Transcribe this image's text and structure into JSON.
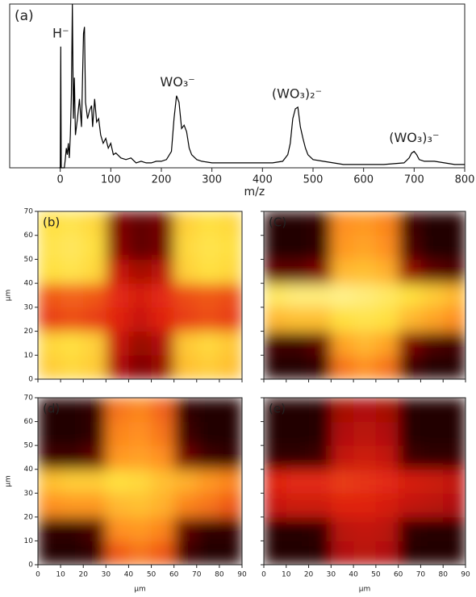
{
  "chart_data": [
    {
      "type": "line",
      "label": "(a)",
      "xlabel": "m/z",
      "color": "#000000",
      "xlim": [
        -100,
        800
      ],
      "xticks": [
        0,
        100,
        200,
        300,
        400,
        500,
        600,
        700,
        800
      ],
      "ylim": [
        0,
        100
      ],
      "x": [
        -2,
        0,
        1,
        2,
        8,
        10,
        12,
        14,
        16,
        18,
        20,
        22,
        24,
        26,
        28,
        30,
        34,
        38,
        42,
        46,
        48,
        50,
        54,
        58,
        62,
        64,
        68,
        72,
        76,
        80,
        85,
        90,
        95,
        100,
        105,
        110,
        120,
        130,
        140,
        150,
        160,
        170,
        180,
        190,
        200,
        210,
        220,
        225,
        230,
        235,
        240,
        245,
        250,
        255,
        260,
        270,
        280,
        300,
        320,
        340,
        360,
        380,
        400,
        420,
        440,
        450,
        455,
        460,
        465,
        470,
        475,
        480,
        485,
        490,
        500,
        520,
        540,
        560,
        600,
        640,
        680,
        690,
        695,
        700,
        705,
        710,
        720,
        740,
        760,
        780,
        800
      ],
      "values": [
        0,
        0,
        74,
        0,
        0,
        5,
        12,
        8,
        15,
        6,
        20,
        45,
        100,
        30,
        55,
        20,
        30,
        42,
        25,
        82,
        86,
        40,
        30,
        35,
        38,
        25,
        42,
        28,
        30,
        20,
        15,
        18,
        12,
        15,
        8,
        9,
        6,
        5,
        6,
        3,
        4,
        3,
        3,
        4,
        4,
        5,
        10,
        30,
        44,
        40,
        24,
        26,
        22,
        12,
        8,
        5,
        4,
        3,
        3,
        3,
        3,
        3,
        3,
        3,
        4,
        8,
        15,
        30,
        36,
        37,
        25,
        18,
        12,
        8,
        5,
        4,
        3,
        2,
        2,
        2,
        3,
        6,
        9,
        10,
        8,
        5,
        4,
        4,
        3,
        2,
        2
      ],
      "annotations": [
        {
          "text": "H⁻",
          "x": 1
        },
        {
          "text": "WO₃⁻",
          "x": 232
        },
        {
          "text": "(WO₃)₂⁻",
          "x": 468
        },
        {
          "text": "(WO₃)₃⁻",
          "x": 700
        }
      ]
    },
    {
      "type": "heatmap",
      "label": "(b)",
      "ylabel": "μm",
      "show_xtick_labels": false,
      "show_ytick_labels": true,
      "xlim": [
        0,
        90
      ],
      "ylim": [
        0,
        70
      ],
      "xticks": [
        0,
        10,
        20,
        30,
        40,
        50,
        60,
        70,
        80,
        90
      ],
      "yticks": [
        0,
        10,
        20,
        30,
        40,
        50,
        60,
        70
      ],
      "zlim": [
        0,
        100
      ],
      "colormap": [
        "#000000",
        "#800000",
        "#e02010",
        "#ff9020",
        "#ffe040",
        "#ffffd0"
      ],
      "x": [
        5,
        15,
        25,
        35,
        45,
        55,
        65,
        75,
        85
      ],
      "y": [
        5,
        15,
        25,
        35,
        45,
        55,
        65
      ],
      "values": [
        [
          75,
          78,
          75,
          30,
          20,
          25,
          72,
          75,
          72
        ],
        [
          78,
          80,
          76,
          35,
          25,
          30,
          74,
          78,
          74
        ],
        [
          45,
          48,
          45,
          40,
          35,
          40,
          45,
          48,
          45
        ],
        [
          50,
          52,
          50,
          42,
          38,
          42,
          48,
          50,
          48
        ],
        [
          80,
          82,
          78,
          35,
          28,
          32,
          76,
          80,
          78
        ],
        [
          82,
          84,
          80,
          22,
          15,
          18,
          78,
          82,
          80
        ],
        [
          80,
          82,
          78,
          20,
          15,
          18,
          76,
          80,
          78
        ]
      ]
    },
    {
      "type": "heatmap",
      "label": "(C)",
      "show_xtick_labels": false,
      "show_ytick_labels": false,
      "xlim": [
        0,
        90
      ],
      "ylim": [
        0,
        70
      ],
      "xticks": [
        0,
        10,
        20,
        30,
        40,
        50,
        60,
        70,
        80,
        90
      ],
      "yticks": [
        0,
        10,
        20,
        30,
        40,
        50,
        60,
        70
      ],
      "zlim": [
        0,
        100
      ],
      "colormap": [
        "#000000",
        "#800000",
        "#e02010",
        "#ff9020",
        "#ffe040",
        "#ffffd0"
      ],
      "x": [
        5,
        15,
        25,
        35,
        45,
        55,
        65,
        75,
        85
      ],
      "y": [
        5,
        15,
        25,
        35,
        45,
        55,
        65
      ],
      "values": [
        [
          5,
          5,
          8,
          55,
          60,
          55,
          10,
          5,
          5
        ],
        [
          10,
          10,
          15,
          65,
          70,
          65,
          20,
          12,
          10
        ],
        [
          70,
          72,
          72,
          80,
          82,
          80,
          70,
          65,
          60
        ],
        [
          85,
          88,
          88,
          90,
          88,
          85,
          80,
          75,
          70
        ],
        [
          15,
          15,
          20,
          70,
          72,
          68,
          25,
          15,
          12
        ],
        [
          5,
          5,
          8,
          62,
          65,
          60,
          12,
          5,
          5
        ],
        [
          5,
          5,
          8,
          60,
          62,
          58,
          10,
          5,
          5
        ]
      ]
    },
    {
      "type": "heatmap",
      "label": "(d)",
      "xlabel": "μm",
      "ylabel": "μm",
      "show_xtick_labels": true,
      "show_ytick_labels": true,
      "xlim": [
        0,
        90
      ],
      "ylim": [
        0,
        70
      ],
      "xticks": [
        0,
        10,
        20,
        30,
        40,
        50,
        60,
        70,
        80,
        90
      ],
      "yticks": [
        0,
        10,
        20,
        30,
        40,
        50,
        60,
        70
      ],
      "zlim": [
        0,
        100
      ],
      "colormap": [
        "#000000",
        "#800000",
        "#e02010",
        "#ff9020",
        "#ffe040",
        "#ffffd0"
      ],
      "x": [
        5,
        15,
        25,
        35,
        45,
        55,
        65,
        75,
        85
      ],
      "y": [
        5,
        15,
        25,
        35,
        45,
        55,
        65
      ],
      "values": [
        [
          5,
          5,
          8,
          50,
          55,
          50,
          10,
          5,
          5
        ],
        [
          8,
          8,
          12,
          60,
          62,
          58,
          15,
          8,
          8
        ],
        [
          60,
          62,
          62,
          70,
          72,
          68,
          58,
          55,
          50
        ],
        [
          72,
          75,
          75,
          80,
          78,
          72,
          68,
          62,
          58
        ],
        [
          10,
          10,
          15,
          62,
          64,
          60,
          18,
          10,
          8
        ],
        [
          5,
          5,
          8,
          58,
          60,
          55,
          10,
          5,
          5
        ],
        [
          5,
          5,
          8,
          55,
          58,
          52,
          8,
          5,
          5
        ]
      ]
    },
    {
      "type": "heatmap",
      "label": "(e)",
      "xlabel": "μm",
      "show_xtick_labels": true,
      "show_ytick_labels": false,
      "xlim": [
        0,
        90
      ],
      "ylim": [
        0,
        70
      ],
      "xticks": [
        0,
        10,
        20,
        30,
        40,
        50,
        60,
        70,
        80,
        90
      ],
      "yticks": [
        0,
        10,
        20,
        30,
        40,
        50,
        60,
        70
      ],
      "zlim": [
        0,
        100
      ],
      "colormap": [
        "#000000",
        "#800000",
        "#e02010",
        "#ff9020",
        "#ffe040",
        "#ffffd0"
      ],
      "x": [
        5,
        15,
        25,
        35,
        45,
        55,
        65,
        75,
        85
      ],
      "y": [
        5,
        15,
        25,
        35,
        45,
        55,
        65
      ],
      "values": [
        [
          5,
          5,
          6,
          30,
          32,
          30,
          6,
          5,
          5
        ],
        [
          6,
          6,
          8,
          32,
          34,
          32,
          8,
          6,
          6
        ],
        [
          35,
          36,
          36,
          40,
          40,
          38,
          34,
          32,
          30
        ],
        [
          40,
          42,
          42,
          45,
          44,
          42,
          38,
          36,
          34
        ],
        [
          8,
          8,
          10,
          34,
          36,
          34,
          10,
          8,
          8
        ],
        [
          5,
          5,
          6,
          30,
          32,
          30,
          6,
          5,
          5
        ],
        [
          5,
          5,
          6,
          28,
          30,
          28,
          6,
          5,
          5
        ]
      ]
    }
  ]
}
